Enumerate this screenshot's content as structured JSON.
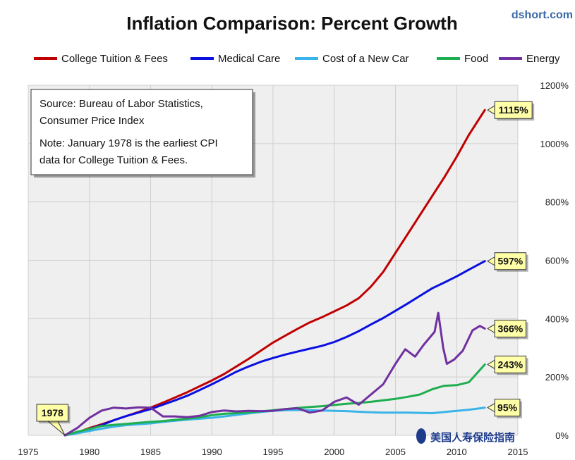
{
  "source_site": "dshort.com",
  "watermark_text": "美国人寿保险指南",
  "note": {
    "line1": "Source: Bureau of Labor Statistics,",
    "line2": "Consumer Price Index",
    "line3": "Note: January 1978  is the earliest CPI",
    "line4": "data for College Tuition & Fees."
  },
  "colors": {
    "college": "#c00000",
    "medical": "#0a10e0",
    "car": "#3ab4e8",
    "food": "#1fae4f",
    "energy": "#7030a0",
    "callout_fill": "#ffffa8",
    "grid": "#cfcfcf",
    "plot_bg": "#efefef"
  },
  "chart_data": {
    "type": "line",
    "title": "Inflation Comparison: Percent Growth",
    "xlim": [
      1975,
      2015
    ],
    "ylim": [
      0,
      1200
    ],
    "x_ticks": [
      1975,
      1980,
      1985,
      1990,
      1995,
      2000,
      2005,
      2010,
      2015
    ],
    "x_tick_labels": [
      "1975",
      "1980",
      "1985",
      "1990",
      "1995",
      "2000",
      "2005",
      "2010",
      "2015"
    ],
    "y_ticks": [
      0,
      200,
      400,
      600,
      800,
      1000,
      1200
    ],
    "y_tick_labels": [
      "0%",
      "200%",
      "400%",
      "600%",
      "800%",
      "1000%",
      "1200%"
    ],
    "y_axis_side": "right",
    "grid": true,
    "legend_position": "top",
    "series": [
      {
        "name": "College Tuition & Fees",
        "color_key": "college",
        "points": [
          [
            1978,
            0
          ],
          [
            1979,
            10
          ],
          [
            1980,
            25
          ],
          [
            1981,
            38
          ],
          [
            1982,
            52
          ],
          [
            1983,
            66
          ],
          [
            1984,
            80
          ],
          [
            1985,
            95
          ],
          [
            1986,
            112
          ],
          [
            1987,
            130
          ],
          [
            1988,
            148
          ],
          [
            1989,
            168
          ],
          [
            1990,
            188
          ],
          [
            1991,
            210
          ],
          [
            1992,
            236
          ],
          [
            1993,
            262
          ],
          [
            1994,
            290
          ],
          [
            1995,
            318
          ],
          [
            1996,
            342
          ],
          [
            1997,
            365
          ],
          [
            1998,
            387
          ],
          [
            1999,
            405
          ],
          [
            2000,
            425
          ],
          [
            2001,
            445
          ],
          [
            2002,
            470
          ],
          [
            2003,
            510
          ],
          [
            2004,
            560
          ],
          [
            2005,
            625
          ],
          [
            2006,
            690
          ],
          [
            2007,
            755
          ],
          [
            2008,
            820
          ],
          [
            2009,
            885
          ],
          [
            2010,
            955
          ],
          [
            2011,
            1030
          ],
          [
            2012.3,
            1115
          ]
        ]
      },
      {
        "name": "Medical Care",
        "color_key": "medical",
        "points": [
          [
            1978,
            0
          ],
          [
            1979,
            10
          ],
          [
            1980,
            22
          ],
          [
            1981,
            35
          ],
          [
            1982,
            52
          ],
          [
            1983,
            66
          ],
          [
            1984,
            78
          ],
          [
            1985,
            90
          ],
          [
            1986,
            105
          ],
          [
            1987,
            120
          ],
          [
            1988,
            136
          ],
          [
            1989,
            155
          ],
          [
            1990,
            175
          ],
          [
            1991,
            196
          ],
          [
            1992,
            218
          ],
          [
            1993,
            236
          ],
          [
            1994,
            252
          ],
          [
            1995,
            265
          ],
          [
            1996,
            277
          ],
          [
            1997,
            287
          ],
          [
            1998,
            297
          ],
          [
            1999,
            307
          ],
          [
            2000,
            320
          ],
          [
            2001,
            337
          ],
          [
            2002,
            357
          ],
          [
            2003,
            380
          ],
          [
            2004,
            402
          ],
          [
            2005,
            427
          ],
          [
            2006,
            452
          ],
          [
            2007,
            478
          ],
          [
            2008,
            504
          ],
          [
            2009,
            524
          ],
          [
            2010,
            545
          ],
          [
            2011,
            568
          ],
          [
            2012.3,
            597
          ]
        ]
      },
      {
        "name": "Cost of a New Car",
        "color_key": "car",
        "points": [
          [
            1978,
            0
          ],
          [
            1979,
            7
          ],
          [
            1980,
            15
          ],
          [
            1981,
            23
          ],
          [
            1982,
            30
          ],
          [
            1983,
            35
          ],
          [
            1984,
            38
          ],
          [
            1985,
            41
          ],
          [
            1986,
            46
          ],
          [
            1987,
            50
          ],
          [
            1988,
            54
          ],
          [
            1989,
            57
          ],
          [
            1990,
            60
          ],
          [
            1991,
            65
          ],
          [
            1992,
            70
          ],
          [
            1993,
            75
          ],
          [
            1994,
            80
          ],
          [
            1995,
            84
          ],
          [
            1996,
            86
          ],
          [
            1997,
            87
          ],
          [
            1998,
            86
          ],
          [
            1999,
            85
          ],
          [
            2000,
            84
          ],
          [
            2001,
            83
          ],
          [
            2002,
            81
          ],
          [
            2003,
            79
          ],
          [
            2004,
            78
          ],
          [
            2005,
            78
          ],
          [
            2006,
            78
          ],
          [
            2007,
            77
          ],
          [
            2008,
            76
          ],
          [
            2009,
            80
          ],
          [
            2010,
            84
          ],
          [
            2011,
            88
          ],
          [
            2012.3,
            95
          ]
        ]
      },
      {
        "name": "Food",
        "color_key": "food",
        "points": [
          [
            1978,
            0
          ],
          [
            1979,
            12
          ],
          [
            1980,
            22
          ],
          [
            1981,
            32
          ],
          [
            1982,
            36
          ],
          [
            1983,
            39
          ],
          [
            1984,
            43
          ],
          [
            1985,
            46
          ],
          [
            1986,
            49
          ],
          [
            1987,
            53
          ],
          [
            1988,
            57
          ],
          [
            1989,
            62
          ],
          [
            1990,
            69
          ],
          [
            1991,
            74
          ],
          [
            1992,
            76
          ],
          [
            1993,
            79
          ],
          [
            1994,
            82
          ],
          [
            1995,
            86
          ],
          [
            1996,
            90
          ],
          [
            1997,
            94
          ],
          [
            1998,
            97
          ],
          [
            1999,
            100
          ],
          [
            2000,
            104
          ],
          [
            2001,
            108
          ],
          [
            2002,
            111
          ],
          [
            2003,
            115
          ],
          [
            2004,
            120
          ],
          [
            2005,
            125
          ],
          [
            2006,
            132
          ],
          [
            2007,
            140
          ],
          [
            2008,
            158
          ],
          [
            2009,
            170
          ],
          [
            2010,
            172
          ],
          [
            2011,
            182
          ],
          [
            2012.3,
            243
          ]
        ]
      },
      {
        "name": "Energy",
        "color_key": "energy",
        "points": [
          [
            1978,
            0
          ],
          [
            1979,
            25
          ],
          [
            1980,
            60
          ],
          [
            1981,
            85
          ],
          [
            1982,
            95
          ],
          [
            1983,
            92
          ],
          [
            1984,
            96
          ],
          [
            1985,
            95
          ],
          [
            1986,
            65
          ],
          [
            1987,
            65
          ],
          [
            1988,
            62
          ],
          [
            1989,
            67
          ],
          [
            1990,
            80
          ],
          [
            1991,
            85
          ],
          [
            1992,
            82
          ],
          [
            1993,
            84
          ],
          [
            1994,
            83
          ],
          [
            1995,
            84
          ],
          [
            1996,
            90
          ],
          [
            1997,
            93
          ],
          [
            1998,
            78
          ],
          [
            1999,
            85
          ],
          [
            2000,
            115
          ],
          [
            2001,
            130
          ],
          [
            2002,
            105
          ],
          [
            2003,
            140
          ],
          [
            2004,
            175
          ],
          [
            2005,
            245
          ],
          [
            2005.8,
            295
          ],
          [
            2006.6,
            270
          ],
          [
            2007.3,
            310
          ],
          [
            2008.2,
            355
          ],
          [
            2008.5,
            420
          ],
          [
            2008.9,
            300
          ],
          [
            2009.2,
            245
          ],
          [
            2009.8,
            260
          ],
          [
            2010.5,
            290
          ],
          [
            2011.3,
            360
          ],
          [
            2011.9,
            375
          ],
          [
            2012.3,
            366
          ]
        ]
      }
    ],
    "callouts": [
      {
        "text": "1115%",
        "x": 2012.3,
        "y": 1115,
        "color_key": "college"
      },
      {
        "text": "597%",
        "x": 2012.3,
        "y": 597,
        "color_key": "medical"
      },
      {
        "text": "366%",
        "x": 2012.3,
        "y": 366,
        "color_key": "energy"
      },
      {
        "text": "243%",
        "x": 2012.3,
        "y": 243,
        "color_key": "food"
      },
      {
        "text": "95%",
        "x": 2012.3,
        "y": 95,
        "color_key": "car"
      },
      {
        "text": "1978",
        "x": 1978,
        "y": 0,
        "color_key": "college"
      }
    ]
  }
}
